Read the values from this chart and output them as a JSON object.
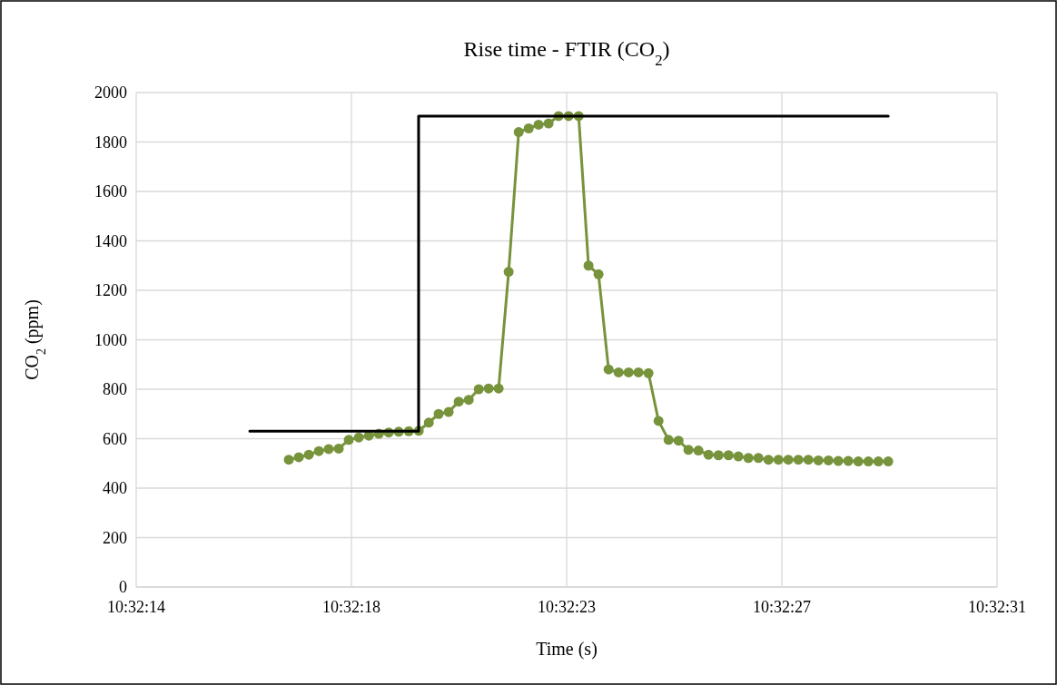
{
  "chart_data": {
    "type": "line",
    "title": "Rise time - FTIR (CO$_{2}$)",
    "xlabel": "Time (s)",
    "ylabel": "CO$_{2}$ (ppm)",
    "x": [
      10.538094,
      10.538149,
      10.538204,
      10.538259,
      10.538313,
      10.538368,
      10.538423,
      10.538478,
      10.538533,
      10.538588,
      10.538642,
      10.538697,
      10.538752,
      10.538807,
      10.538862,
      10.538916,
      10.538971,
      10.539026,
      10.539081,
      10.539136,
      10.53919,
      10.539245,
      10.5393,
      10.539355,
      10.53941,
      10.539464,
      10.539519,
      10.539574,
      10.539629,
      10.539684,
      10.539738,
      10.539793,
      10.539848,
      10.539903,
      10.539958,
      10.540012,
      10.540067,
      10.540122,
      10.540177,
      10.540232,
      10.540286,
      10.540341,
      10.540396,
      10.540451,
      10.540506,
      10.54056,
      10.540615,
      10.54067,
      10.540725,
      10.54078,
      10.540834,
      10.540889,
      10.540944,
      10.540999,
      10.541054,
      10.541108,
      10.541163,
      10.541218,
      10.541273,
      10.541328,
      10.541382
    ],
    "series": [
      {
        "color": "#77933c",
        "marker": "circle",
        "values": [
          515,
          525,
          535,
          550,
          558,
          560,
          595,
          605,
          612,
          620,
          625,
          628,
          630,
          632,
          665,
          700,
          708,
          750,
          757,
          800,
          803,
          803,
          1275,
          1840,
          1855,
          1870,
          1875,
          1905,
          1905,
          1905,
          1300,
          1265,
          880,
          868,
          868,
          868,
          865,
          672,
          595,
          592,
          555,
          552,
          535,
          533,
          533,
          528,
          522,
          522,
          515,
          515,
          515,
          515,
          515,
          512,
          512,
          510,
          510,
          508,
          508,
          508,
          508
        ]
      },
      {
        "color": "#000000",
        "marker": "none",
        "x": [
          10.53788,
          10.538806,
          10.538806,
          10.541382
        ],
        "values": [
          630,
          630,
          1905,
          1905
        ]
      }
    ],
    "xlim": [
      10.537257,
      10.541979
    ],
    "xticks": [
      {
        "value": 10.537257,
        "label": "10:32:14"
      },
      {
        "value": 10.538438,
        "label": "10:32:18"
      },
      {
        "value": 10.539618,
        "label": "10:32:23"
      },
      {
        "value": 10.540799,
        "label": "10:32:27"
      },
      {
        "value": 10.541979,
        "label": "10:32:31"
      }
    ],
    "ylim": [
      0,
      2000
    ],
    "yticks": [
      0,
      200,
      400,
      600,
      800,
      1000,
      1200,
      1400,
      1600,
      1800,
      2000
    ],
    "grid": true
  }
}
